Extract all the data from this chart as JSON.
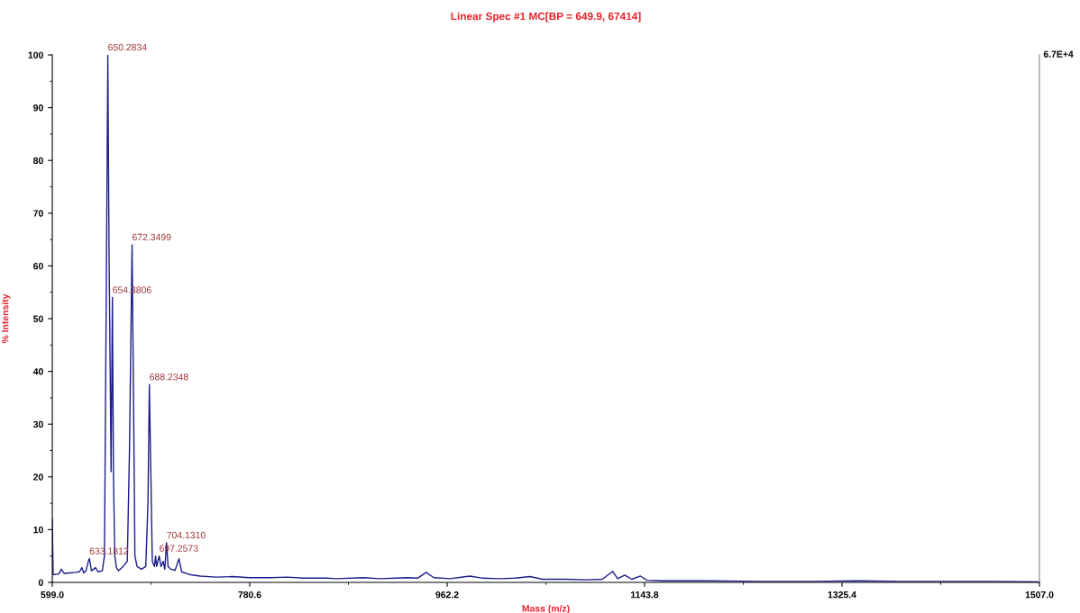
{
  "chart_data": {
    "type": "line",
    "title": "Linear Spec #1 MC[BP = 649.9, 67414]",
    "xlabel": "Mass (m/z)",
    "ylabel": "% Intensity",
    "x": [
      599.0,
      599.8,
      600.5,
      605,
      607.3,
      610,
      615,
      620,
      624,
      626.2,
      628,
      630,
      632.2,
      633.2,
      635,
      638.8,
      641,
      645,
      647,
      648.5,
      650.1,
      651.2,
      653.1,
      654.3,
      655.3,
      656.5,
      658,
      660,
      664,
      668,
      670,
      672.4,
      673.5,
      675,
      677,
      681,
      685,
      687,
      688.3,
      689.3,
      691,
      693,
      694,
      695,
      697.3,
      699,
      701,
      702.5,
      704.1,
      705.5,
      708,
      712,
      715.5,
      718,
      725,
      735,
      750,
      765,
      780,
      800,
      815,
      830,
      851.8,
      860,
      885.5,
      900,
      915,
      924.9,
      935,
      942.9,
      950,
      965,
      983.1,
      995,
      1010,
      1025,
      1038.3,
      1050,
      1070,
      1090,
      1105,
      1114.4,
      1119,
      1125.6,
      1132,
      1140,
      1146,
      1160,
      1200,
      1250,
      1300,
      1340,
      1380,
      1420,
      1460,
      1507.0
    ],
    "series": [
      {
        "color": "#1c1c8a",
        "values": [
          12,
          1.5,
          1.5,
          1.6,
          2.5,
          1.7,
          1.8,
          1.9,
          2.0,
          2.8,
          1.8,
          2.2,
          4.0,
          4.5,
          2.2,
          2.8,
          2.0,
          2.2,
          5,
          50,
          100,
          63,
          21,
          54,
          20,
          5,
          2.8,
          2.2,
          3.0,
          4,
          25,
          64,
          40,
          5,
          3,
          2.5,
          3,
          15,
          37.5,
          25,
          4,
          3,
          5,
          3,
          5,
          3,
          4,
          2.5,
          7.5,
          3,
          2.5,
          2.3,
          4.5,
          2,
          1.5,
          1.2,
          1.0,
          1.1,
          0.9,
          0.9,
          1.0,
          0.8,
          0.8,
          0.7,
          0.9,
          0.7,
          0.8,
          0.9,
          0.8,
          1.9,
          0.9,
          0.7,
          1.2,
          0.8,
          0.7,
          0.8,
          1.1,
          0.6,
          0.6,
          0.5,
          0.6,
          2.1,
          0.7,
          1.4,
          0.6,
          1.2,
          0.4,
          0.3,
          0.3,
          0.2,
          0.2,
          0.3,
          0.2,
          0.2,
          0.2,
          0.1
        ]
      }
    ],
    "xlim": [
      599.0,
      1507.0
    ],
    "ylim": [
      0,
      100
    ],
    "xticks": [
      {
        "value": 599.0,
        "label": "599.0"
      },
      {
        "value": 780.6,
        "label": "780.6"
      },
      {
        "value": 962.2,
        "label": "962.2"
      },
      {
        "value": 1143.8,
        "label": "1143.8"
      },
      {
        "value": 1325.4,
        "label": "1325.4"
      },
      {
        "value": 1507.0,
        "label": "1507.0"
      }
    ],
    "yticks": [
      0,
      10,
      20,
      30,
      40,
      50,
      60,
      70,
      80,
      90,
      100
    ],
    "grid": false,
    "marker": "none",
    "line_style": "solid",
    "annotations": [
      {
        "text": "650.2834",
        "x": 650.1,
        "y": 100
      },
      {
        "text": "654.3806",
        "x": 654.3,
        "y": 54
      },
      {
        "text": "672.3499",
        "x": 672.4,
        "y": 64
      },
      {
        "text": "688.2348",
        "x": 688.3,
        "y": 37.5
      },
      {
        "text": "704.1310",
        "x": 704.1,
        "y": 7.5
      },
      {
        "text": "697.2573",
        "x": 697.3,
        "y": 5
      },
      {
        "text": "633.1812",
        "x": 633.2,
        "y": 4.5
      },
      "6.7E+4"
    ]
  }
}
